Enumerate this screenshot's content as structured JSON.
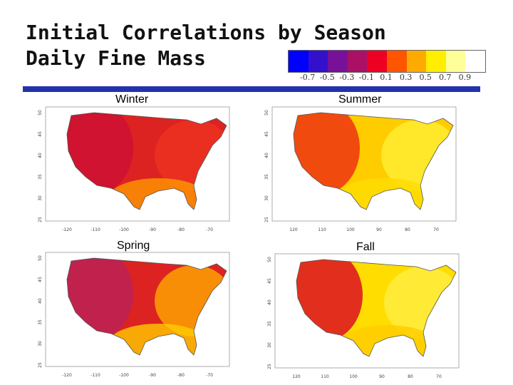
{
  "title_line1": "Initial Correlations by Season",
  "title_line2": "Daily Fine Mass",
  "colorbar": {
    "colors": [
      "#0000ff",
      "#3311cc",
      "#771199",
      "#aa1166",
      "#ee0022",
      "#ff5500",
      "#ffaa00",
      "#ffee00",
      "#ffff99",
      "#ffffff"
    ],
    "labels": [
      "-0.7",
      "-0.5",
      "-0.3",
      "-0.1",
      "0.1",
      "0.3",
      "0.5",
      "0.7",
      "0.9"
    ]
  },
  "panels": [
    {
      "label": "Winter",
      "lat_ticks": [
        "50",
        "45",
        "40",
        "35",
        "30",
        "25"
      ],
      "lon_ticks": [
        "-120",
        "-110",
        "-100",
        "-90",
        "-80",
        "-70"
      ],
      "base": "#dd2222",
      "west": "#cc1133",
      "east": "#ee3322",
      "south": "#ff9900"
    },
    {
      "label": "Summer",
      "lat_ticks": [
        "50",
        "45",
        "40",
        "35",
        "30",
        "25"
      ],
      "lon_ticks": [
        "120",
        "110",
        "100",
        "90",
        "80",
        "70"
      ],
      "base": "#ffcc00",
      "west": "#ee3311",
      "east": "#ffee33",
      "south": "#ffdd00"
    },
    {
      "label": "Spring",
      "lat_ticks": [
        "50",
        "45",
        "40",
        "35",
        "30",
        "25"
      ],
      "lon_ticks": [
        "-120",
        "-110",
        "-100",
        "-90",
        "-80",
        "-70"
      ],
      "base": "#dd2222",
      "west": "#bb2255",
      "east": "#ffaa00",
      "south": "#ffcc00"
    },
    {
      "label": "Fall",
      "lat_ticks": [
        "50",
        "45",
        "40",
        "35",
        "30",
        "25"
      ],
      "lon_ticks": [
        "120",
        "110",
        "100",
        "90",
        "80",
        "70"
      ],
      "base": "#ffdd00",
      "west": "#dd1122",
      "east": "#ffee44",
      "south": "#ffcc00"
    }
  ]
}
